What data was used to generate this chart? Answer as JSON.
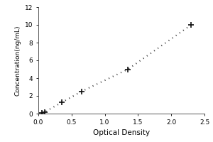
{
  "x": [
    0.05,
    0.1,
    0.35,
    0.65,
    1.35,
    2.3
  ],
  "y": [
    0.1,
    0.2,
    1.25,
    2.5,
    5.0,
    10.0
  ],
  "line_color": "#333333",
  "marker_color": "#111111",
  "xlabel": "Optical Density",
  "ylabel": "Concentration(ng/mL)",
  "xlim": [
    0,
    2.5
  ],
  "ylim": [
    0,
    12
  ],
  "xticks": [
    0,
    0.5,
    1,
    1.5,
    2,
    2.5
  ],
  "yticks": [
    0,
    2,
    4,
    6,
    8,
    10,
    12
  ],
  "xlabel_fontsize": 7.5,
  "ylabel_fontsize": 6.5,
  "tick_fontsize": 6.5,
  "bg_color": "#ffffff",
  "fig_width": 3.0,
  "fig_height": 2.0,
  "dpi": 100
}
